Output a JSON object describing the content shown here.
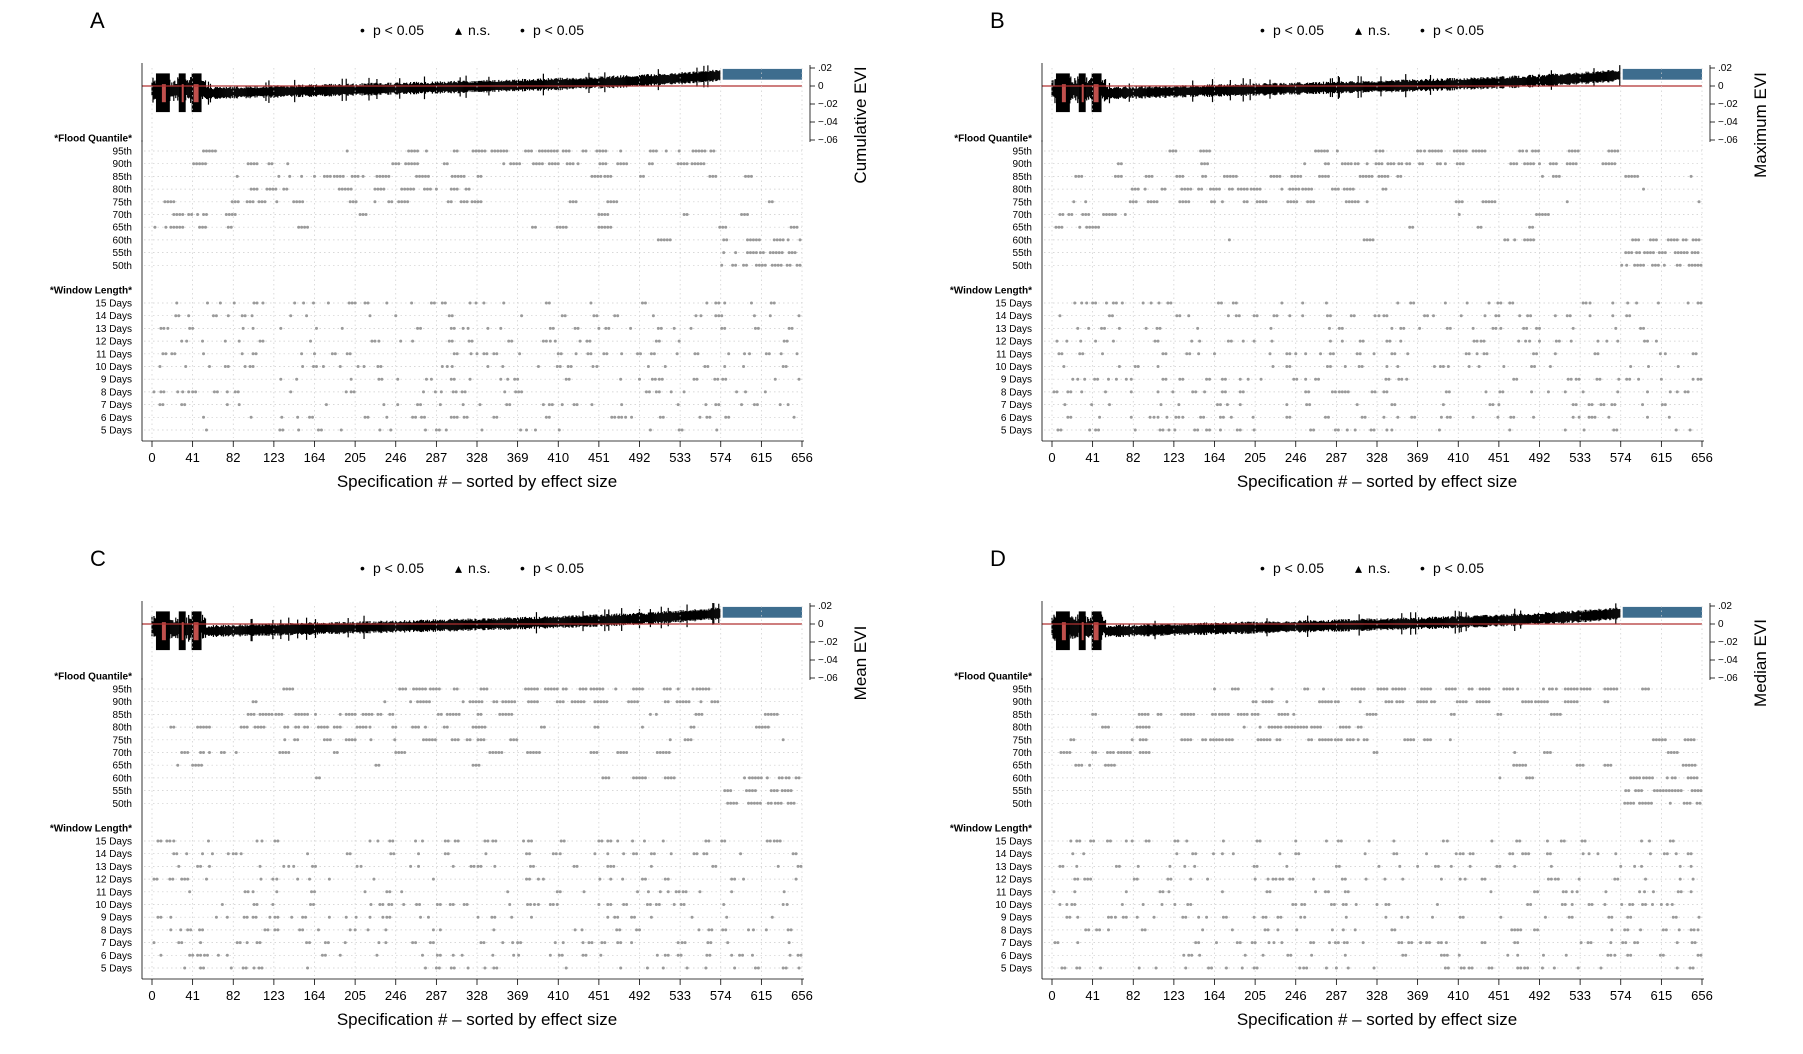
{
  "legend": [
    {
      "symbol": "•",
      "label": "p < 0.05"
    },
    {
      "symbol": "▴",
      "label": "n.s."
    },
    {
      "symbol": "•",
      "label": "p < 0.05"
    }
  ],
  "colors": {
    "negative": "#c0504d",
    "positive": "#3e6d8e",
    "ci": "#000000",
    "dots": "#9a9a9a",
    "zero": "#b03030",
    "grid": "#cccccc"
  },
  "chart_data": [
    {
      "panel": "A",
      "type": "specification-curve",
      "ylabel": "Cumulative EVI",
      "yticks": [
        ".02",
        "0",
        "−.02",
        "−.04",
        "−.06"
      ],
      "ylim": [
        -0.06,
        0.02
      ],
      "xlabel": "Specification # – sorted by effect size",
      "xticks": [
        "0",
        "41",
        "82",
        "123",
        "164",
        "205",
        "246",
        "287",
        "328",
        "369",
        "410",
        "451",
        "492",
        "533",
        "574",
        "615",
        "656"
      ],
      "n_specs": 656,
      "groups": [
        {
          "name": "*Flood Quantile*",
          "levels": [
            "95th",
            "90th",
            "85th",
            "80th",
            "75th",
            "70th",
            "65th",
            "60th",
            "55th",
            "50th"
          ]
        },
        {
          "name": "*Window Length*",
          "levels": [
            "15 Days",
            "14 Days",
            "13 Days",
            "12 Days",
            "11 Days",
            "10 Days",
            "9 Days",
            "8 Days",
            "7 Days",
            "6 Days",
            "5 Days"
          ]
        }
      ]
    },
    {
      "panel": "B",
      "type": "specification-curve",
      "ylabel": "Maximum EVI",
      "yticks": [
        ".02",
        "0",
        "−.02",
        "−.04",
        "−.06"
      ],
      "ylim": [
        -0.06,
        0.02
      ],
      "xlabel": "Specification # – sorted by effect size",
      "xticks": [
        "0",
        "41",
        "82",
        "123",
        "164",
        "205",
        "246",
        "287",
        "328",
        "369",
        "410",
        "451",
        "492",
        "533",
        "574",
        "615",
        "656"
      ],
      "n_specs": 656,
      "groups": [
        {
          "name": "*Flood Quantile*",
          "levels": [
            "95th",
            "90th",
            "85th",
            "80th",
            "75th",
            "70th",
            "65th",
            "60th",
            "55th",
            "50th"
          ]
        },
        {
          "name": "*Window Length*",
          "levels": [
            "15 Days",
            "14 Days",
            "13 Days",
            "12 Days",
            "11 Days",
            "10 Days",
            "9 Days",
            "8 Days",
            "7 Days",
            "6 Days",
            "5 Days"
          ]
        }
      ]
    },
    {
      "panel": "C",
      "type": "specification-curve",
      "ylabel": "Mean EVI",
      "yticks": [
        ".02",
        "0",
        "−.02",
        "−.04",
        "−.06"
      ],
      "ylim": [
        -0.06,
        0.02
      ],
      "xlabel": "Specification # – sorted by effect size",
      "xticks": [
        "0",
        "41",
        "82",
        "123",
        "164",
        "205",
        "246",
        "287",
        "328",
        "369",
        "410",
        "451",
        "492",
        "533",
        "574",
        "615",
        "656"
      ],
      "n_specs": 656,
      "groups": [
        {
          "name": "*Flood Quantile*",
          "levels": [
            "95th",
            "90th",
            "85th",
            "80th",
            "75th",
            "70th",
            "65th",
            "60th",
            "55th",
            "50th"
          ]
        },
        {
          "name": "*Window Length*",
          "levels": [
            "15 Days",
            "14 Days",
            "13 Days",
            "12 Days",
            "11 Days",
            "10 Days",
            "9 Days",
            "8 Days",
            "7 Days",
            "6 Days",
            "5 Days"
          ]
        }
      ]
    },
    {
      "panel": "D",
      "type": "specification-curve",
      "ylabel": "Median EVI",
      "yticks": [
        ".02",
        "0",
        "−.02",
        "−.04",
        "−.06"
      ],
      "ylim": [
        -0.06,
        0.02
      ],
      "xlabel": "Specification # – sorted by effect size",
      "xticks": [
        "0",
        "41",
        "82",
        "123",
        "164",
        "205",
        "246",
        "287",
        "328",
        "369",
        "410",
        "451",
        "492",
        "533",
        "574",
        "615",
        "656"
      ],
      "n_specs": 656,
      "groups": [
        {
          "name": "*Flood Quantile*",
          "levels": [
            "95th",
            "90th",
            "85th",
            "80th",
            "75th",
            "70th",
            "65th",
            "60th",
            "55th",
            "50th"
          ]
        },
        {
          "name": "*Window Length*",
          "levels": [
            "15 Days",
            "14 Days",
            "13 Days",
            "12 Days",
            "11 Days",
            "10 Days",
            "9 Days",
            "8 Days",
            "7 Days",
            "6 Days",
            "5 Days"
          ]
        }
      ]
    }
  ]
}
